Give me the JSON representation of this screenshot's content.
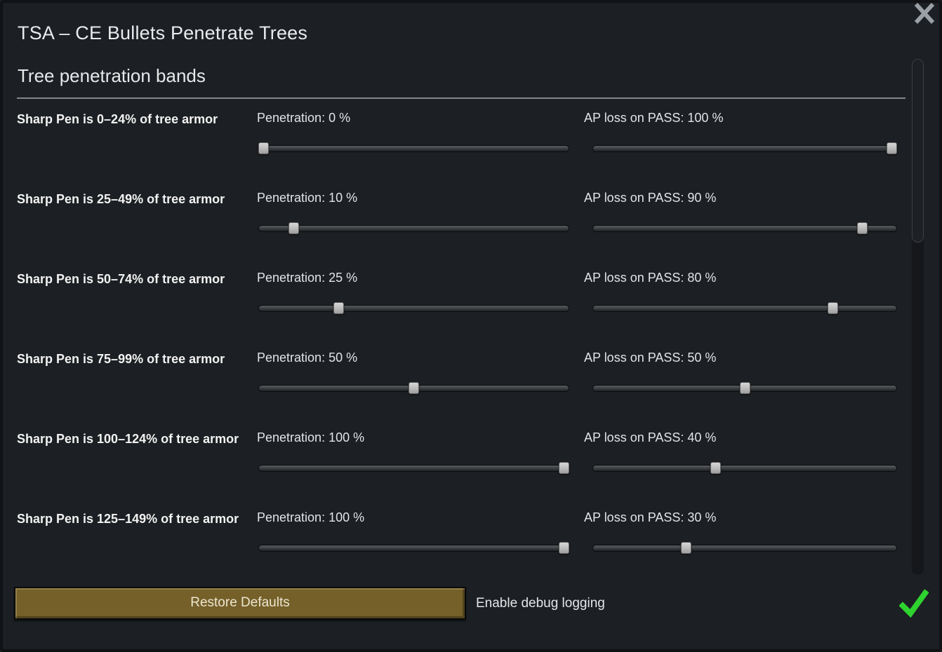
{
  "window": {
    "title": "TSA – CE Bullets Penetrate Trees",
    "close_icon": "close-x"
  },
  "section": {
    "title": "Tree penetration bands"
  },
  "rows": [
    {
      "label": "Sharp Pen is 0–24% of tree armor",
      "pen_label": "Penetration: 0 %",
      "pen_value": 0,
      "ap_label": "AP loss on PASS: 100 %",
      "ap_value": 100
    },
    {
      "label": "Sharp Pen is 25–49% of tree armor",
      "pen_label": "Penetration: 10 %",
      "pen_value": 10,
      "ap_label": "AP loss on PASS: 90 %",
      "ap_value": 90
    },
    {
      "label": "Sharp Pen is 50–74% of tree armor",
      "pen_label": "Penetration: 25 %",
      "pen_value": 25,
      "ap_label": "AP loss on PASS: 80 %",
      "ap_value": 80
    },
    {
      "label": "Sharp Pen is 75–99% of tree armor",
      "pen_label": "Penetration: 50 %",
      "pen_value": 50,
      "ap_label": "AP loss on PASS: 50 %",
      "ap_value": 50
    },
    {
      "label": "Sharp Pen is 100–124% of tree armor",
      "pen_label": "Penetration: 100 %",
      "pen_value": 100,
      "ap_label": "AP loss on PASS: 40 %",
      "ap_value": 40
    },
    {
      "label": "Sharp Pen is 125–149% of tree armor",
      "pen_label": "Penetration: 100 %",
      "pen_value": 100,
      "ap_label": "AP loss on PASS: 30 %",
      "ap_value": 30
    }
  ],
  "footer": {
    "restore_button": "Restore Defaults",
    "debug_label": "Enable debug logging",
    "debug_checked": true
  },
  "colors": {
    "background": "#1c1f23",
    "button_brown": "#756029",
    "check_green": "#2fd32f",
    "divider_gray": "#83878c",
    "text": "#e6e8ea"
  }
}
